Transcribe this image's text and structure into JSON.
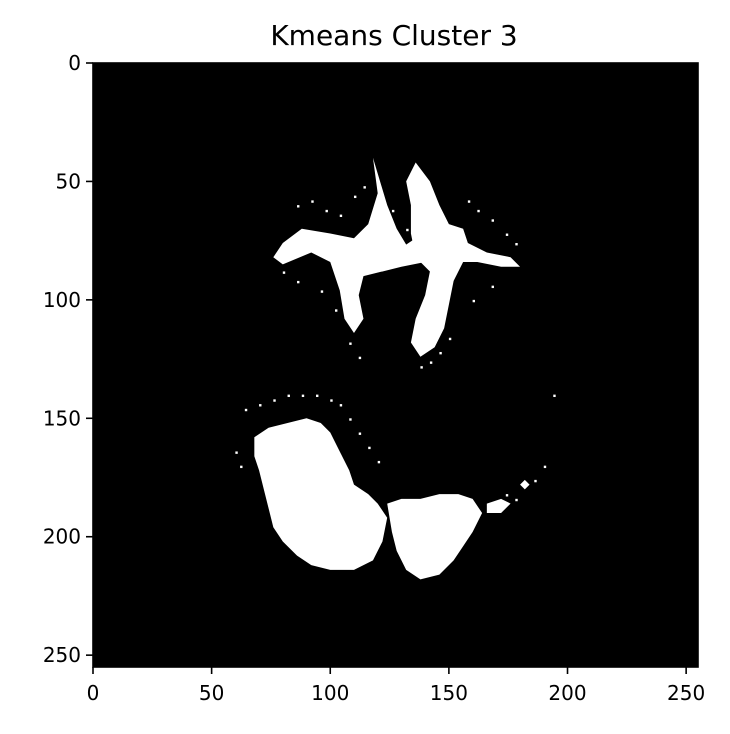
{
  "chart_data": {
    "type": "heatmap",
    "title": "Kmeans Cluster 3",
    "xlabel": "",
    "ylabel": "",
    "xlim": [
      0,
      255
    ],
    "ylim": [
      255,
      0
    ],
    "xticks": [
      0,
      50,
      100,
      150,
      200,
      250
    ],
    "yticks": [
      0,
      50,
      100,
      150,
      200,
      250
    ],
    "xtick_labels": [
      "0",
      "50",
      "100",
      "150",
      "200",
      "250"
    ],
    "ytick_labels": [
      "0",
      "50",
      "100",
      "150",
      "200",
      "250"
    ],
    "colormap": "gray",
    "grid": false,
    "background_color": "#000000",
    "foreground_color": "#ffffff",
    "description_of_mask": "binary mask of brain tissue cluster; white regions are cluster members"
  }
}
